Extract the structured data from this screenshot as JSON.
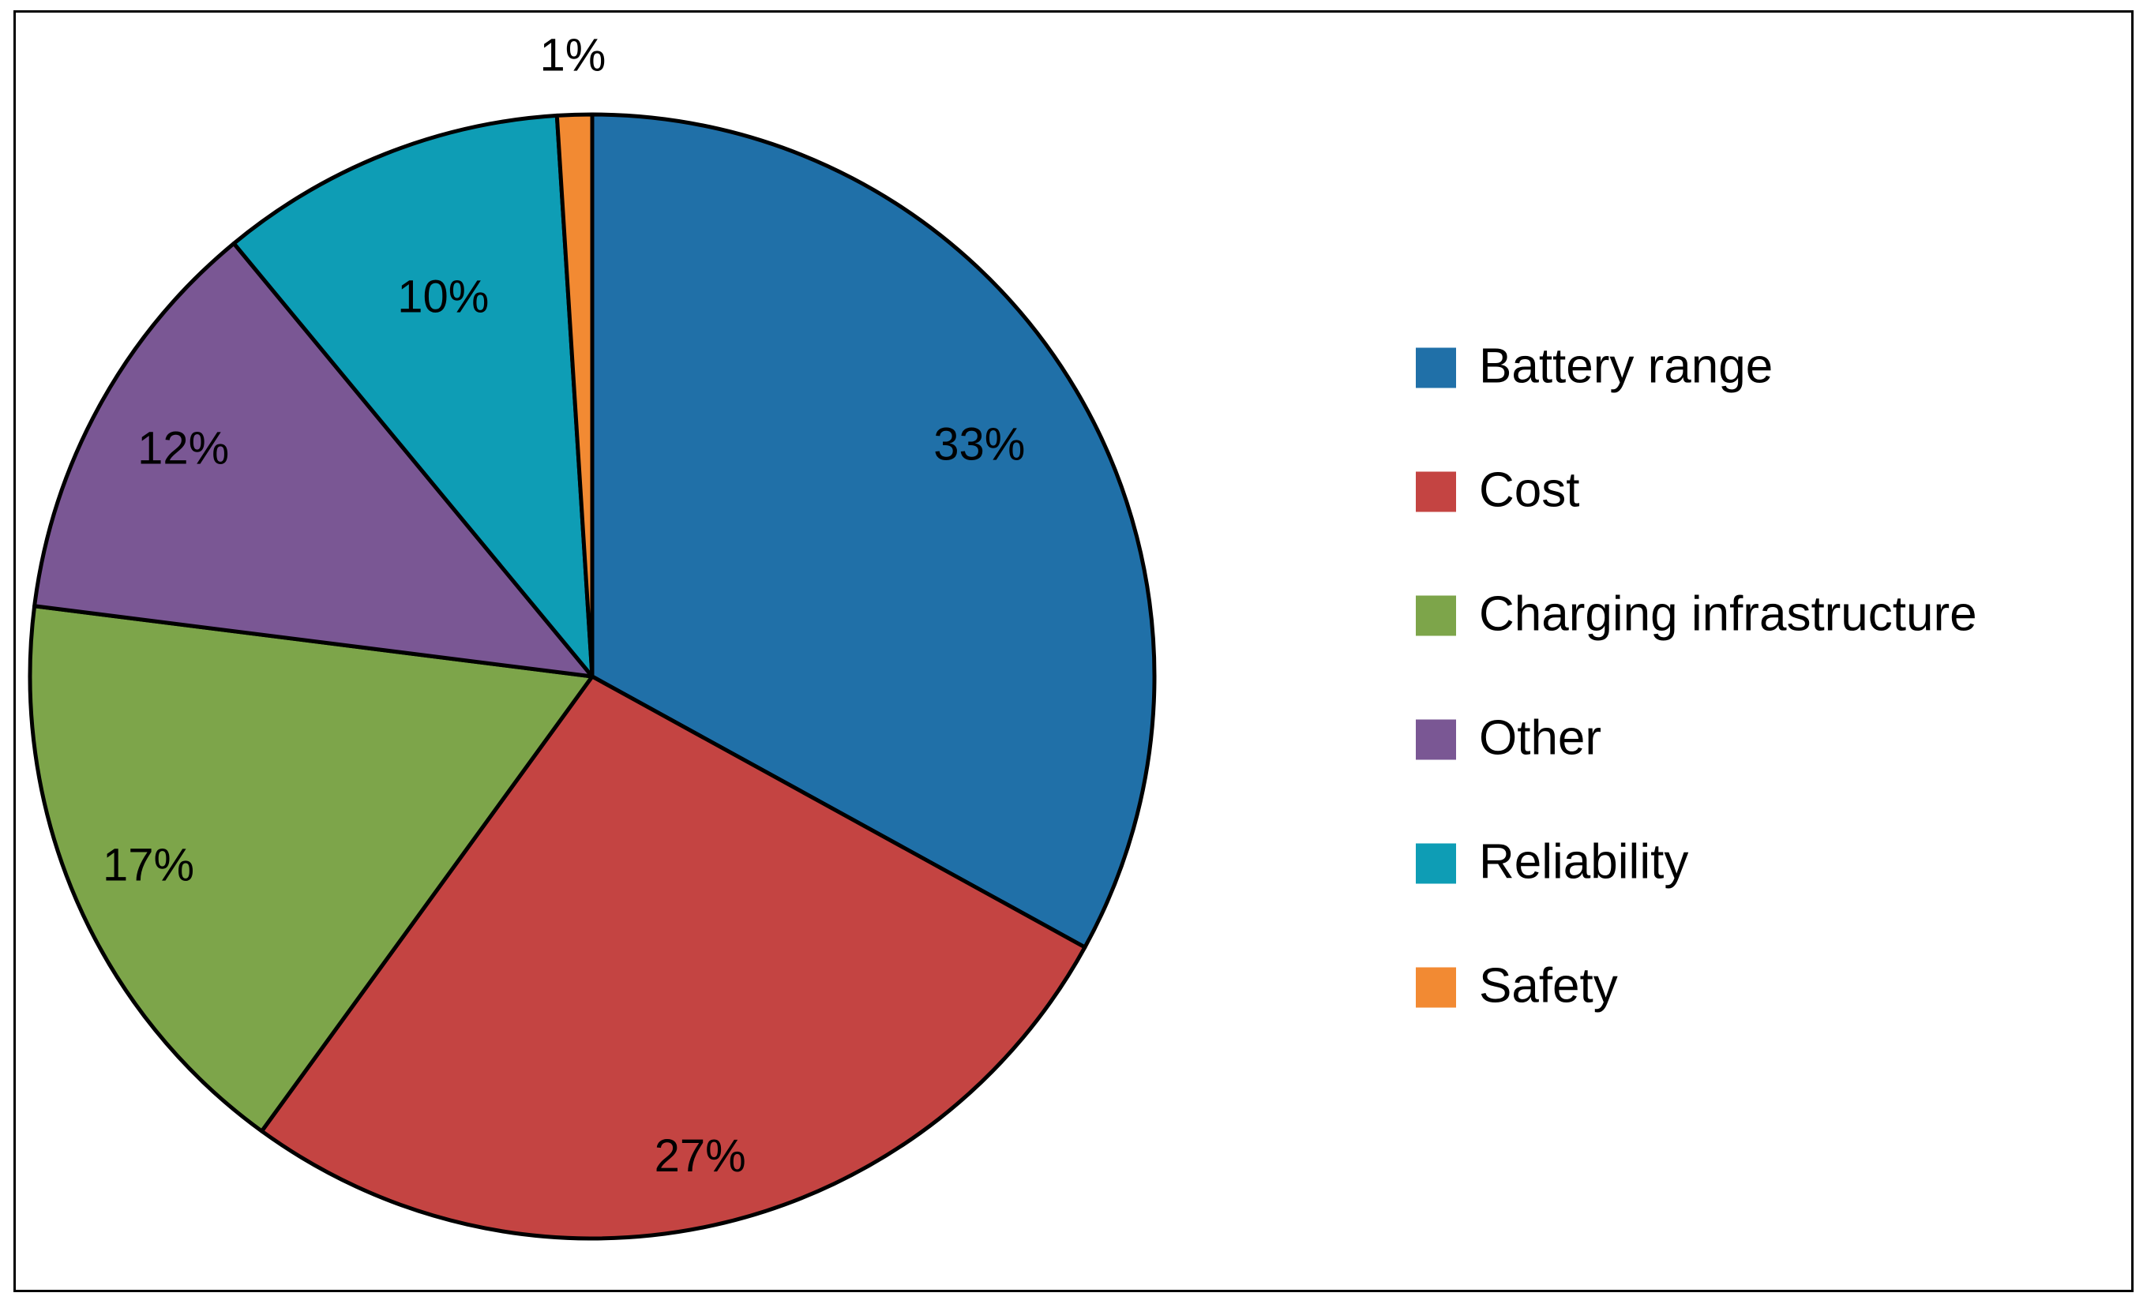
{
  "chart_data": {
    "type": "pie",
    "title": "",
    "categories": [
      "Battery range",
      "Cost",
      "Charging infrastructure",
      "Other",
      "Reliability",
      "Safety"
    ],
    "values": [
      33,
      27,
      17,
      12,
      10,
      1
    ],
    "labels": [
      "33%",
      "27%",
      "17%",
      "12%",
      "10%",
      "1%"
    ],
    "colors": [
      "#2070A8",
      "#C44442",
      "#7DA54A",
      "#7A5794",
      "#0E9DB5",
      "#F28A33"
    ],
    "start_angle": "12 o'clock",
    "direction": "clockwise",
    "legend_position": "right"
  }
}
